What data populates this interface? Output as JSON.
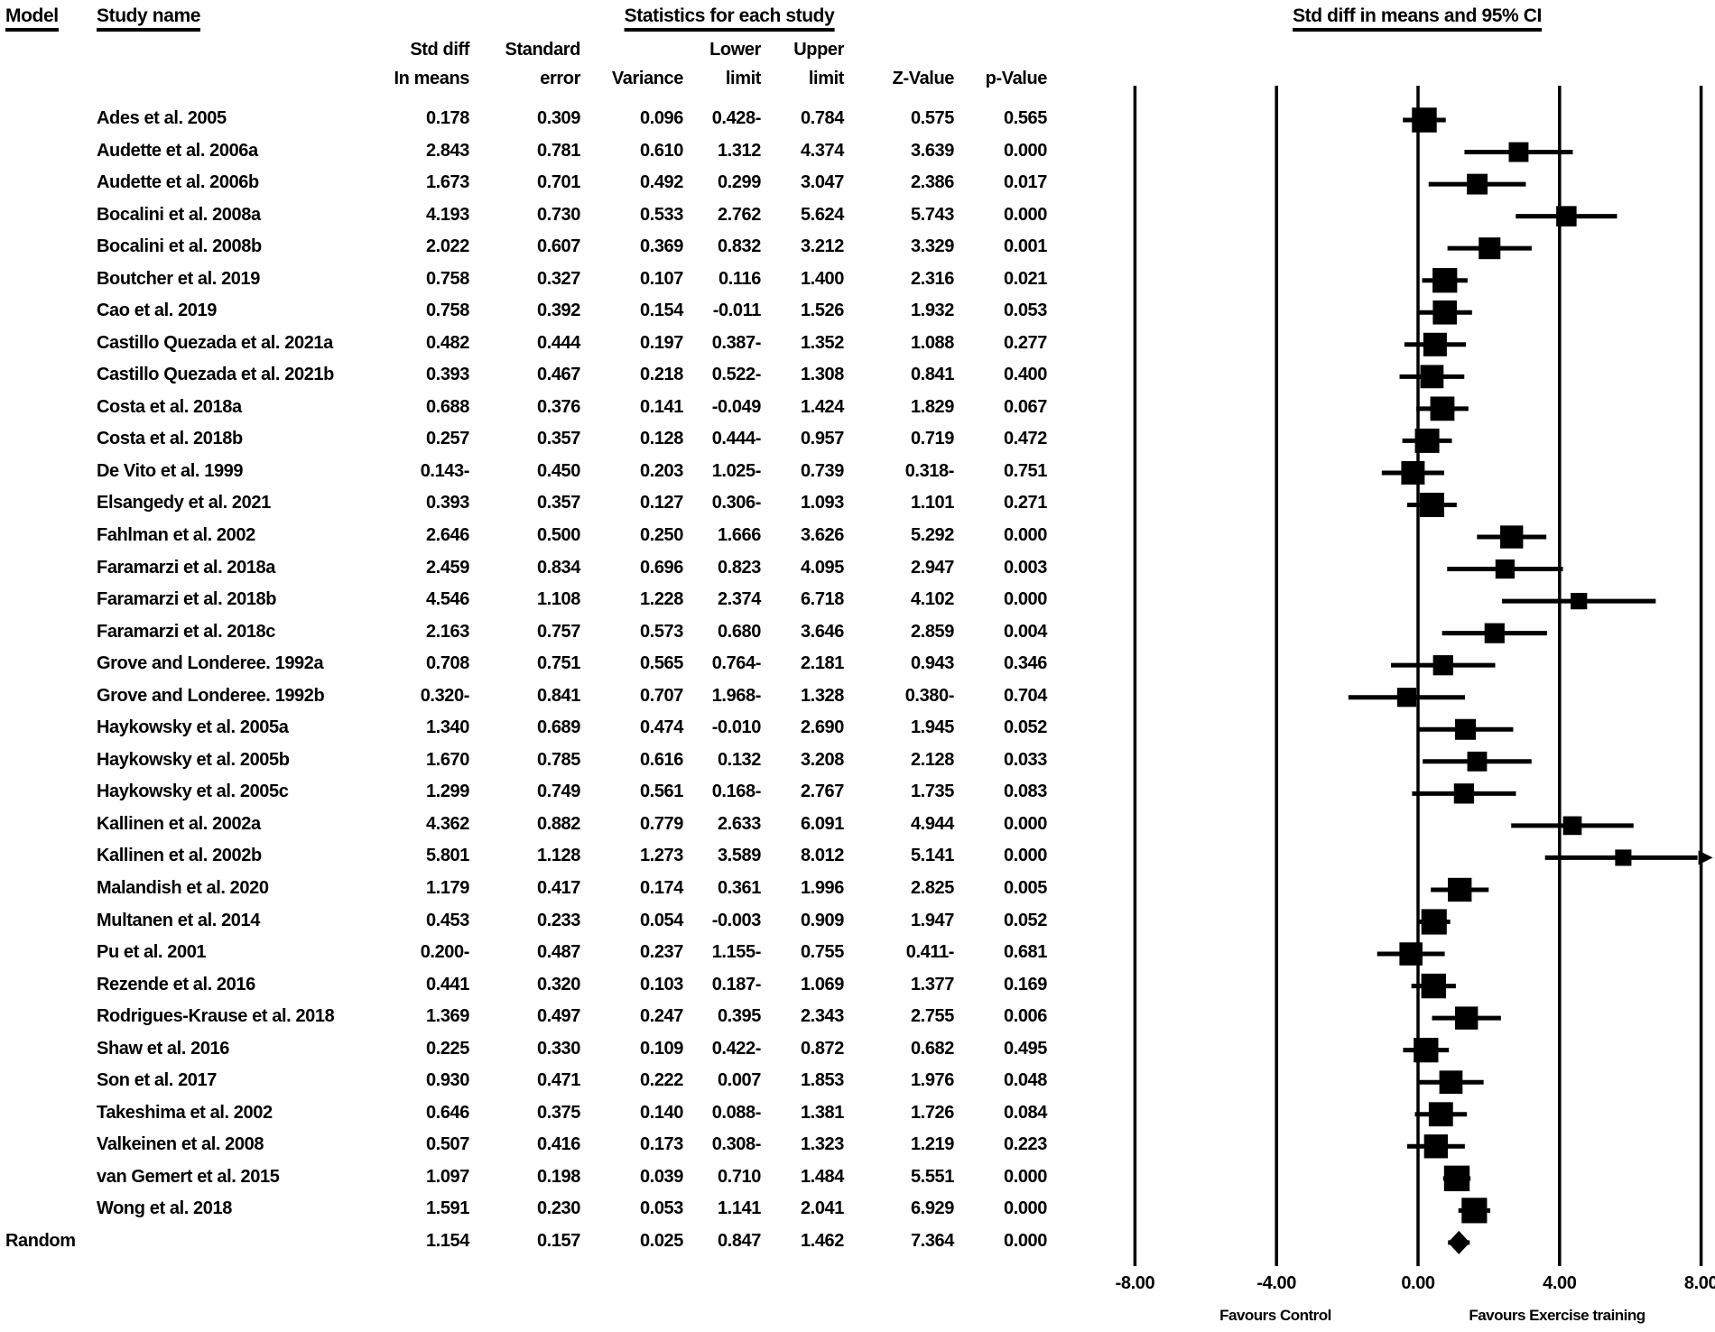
{
  "header": {
    "model": "Model",
    "study_name": "Study name",
    "stats_title": "Statistics for each study",
    "plot_title": "Std diff in means and 95% CI",
    "columns": [
      {
        "line1": "Std diff",
        "line2": "In means"
      },
      {
        "line1": "Standard",
        "line2": "error"
      },
      {
        "line1": "",
        "line2": "Variance"
      },
      {
        "line1": "Lower",
        "line2": "limit"
      },
      {
        "line1": "Upper",
        "line2": "limit"
      },
      {
        "line1": "",
        "line2": "Z-Value"
      },
      {
        "line1": "",
        "line2": "p-Value"
      }
    ]
  },
  "chart_data": {
    "type": "scatter",
    "subtype": "forest-plot",
    "title": "Std diff in means and 95% CI",
    "stats_title": "Statistics for each study",
    "x_axis": {
      "ticks": [
        -8,
        -4,
        0,
        4,
        8
      ],
      "tick_labels": [
        "-8.00",
        "-4.00",
        "0.00",
        "4.00",
        "8.00"
      ],
      "label_left": "Favours Control",
      "label_right": "Favours Exercise training",
      "xlim": [
        -8,
        8
      ]
    },
    "column_keys": [
      "std-diff-in-means",
      "standard-error",
      "variance",
      "lower-limit",
      "upper-limit",
      "z-value",
      "p-value"
    ],
    "studies": [
      {
        "model": "",
        "name": "Ades et al. 2005",
        "cells": [
          "0.178",
          "0.309",
          "0.096",
          "0.428-",
          "0.784",
          "0.575",
          "0.565"
        ],
        "est": 0.178,
        "lo": -0.428,
        "hi": 0.784,
        "summary": false
      },
      {
        "model": "",
        "name": "Audette et al. 2006a",
        "cells": [
          "2.843",
          "0.781",
          "0.610",
          "1.312",
          "4.374",
          "3.639",
          "0.000"
        ],
        "est": 2.843,
        "lo": 1.312,
        "hi": 4.374,
        "summary": false
      },
      {
        "model": "",
        "name": "Audette et al. 2006b",
        "cells": [
          "1.673",
          "0.701",
          "0.492",
          "0.299",
          "3.047",
          "2.386",
          "0.017"
        ],
        "est": 1.673,
        "lo": 0.299,
        "hi": 3.047,
        "summary": false
      },
      {
        "model": "",
        "name": "Bocalini et al. 2008a",
        "cells": [
          "4.193",
          "0.730",
          "0.533",
          "2.762",
          "5.624",
          "5.743",
          "0.000"
        ],
        "est": 4.193,
        "lo": 2.762,
        "hi": 5.624,
        "summary": false
      },
      {
        "model": "",
        "name": "Bocalini et al. 2008b",
        "cells": [
          "2.022",
          "0.607",
          "0.369",
          "0.832",
          "3.212",
          "3.329",
          "0.001"
        ],
        "est": 2.022,
        "lo": 0.832,
        "hi": 3.212,
        "summary": false
      },
      {
        "model": "",
        "name": "Boutcher et al. 2019",
        "cells": [
          "0.758",
          "0.327",
          "0.107",
          "0.116",
          "1.400",
          "2.316",
          "0.021"
        ],
        "est": 0.758,
        "lo": 0.116,
        "hi": 1.4,
        "summary": false
      },
      {
        "model": "",
        "name": "Cao et al. 2019",
        "cells": [
          "0.758",
          "0.392",
          "0.154",
          "-0.011",
          "1.526",
          "1.932",
          "0.053"
        ],
        "est": 0.758,
        "lo": -0.011,
        "hi": 1.526,
        "summary": false
      },
      {
        "model": "",
        "name": "Castillo Quezada et al. 2021a",
        "cells": [
          "0.482",
          "0.444",
          "0.197",
          "0.387-",
          "1.352",
          "1.088",
          "0.277"
        ],
        "est": 0.482,
        "lo": -0.387,
        "hi": 1.352,
        "summary": false
      },
      {
        "model": "",
        "name": "Castillo Quezada et al. 2021b",
        "cells": [
          "0.393",
          "0.467",
          "0.218",
          "0.522-",
          "1.308",
          "0.841",
          "0.400"
        ],
        "est": 0.393,
        "lo": -0.522,
        "hi": 1.308,
        "summary": false
      },
      {
        "model": "",
        "name": "Costa et al. 2018a",
        "cells": [
          "0.688",
          "0.376",
          "0.141",
          "-0.049",
          "1.424",
          "1.829",
          "0.067"
        ],
        "est": 0.688,
        "lo": -0.049,
        "hi": 1.424,
        "summary": false
      },
      {
        "model": "",
        "name": "Costa et al. 2018b",
        "cells": [
          "0.257",
          "0.357",
          "0.128",
          "0.444-",
          "0.957",
          "0.719",
          "0.472"
        ],
        "est": 0.257,
        "lo": -0.444,
        "hi": 0.957,
        "summary": false
      },
      {
        "model": "",
        "name": "De Vito et al. 1999",
        "cells": [
          "0.143-",
          "0.450",
          "0.203",
          "1.025-",
          "0.739",
          "0.318-",
          "0.751"
        ],
        "est": -0.143,
        "lo": -1.025,
        "hi": 0.739,
        "summary": false
      },
      {
        "model": "",
        "name": "Elsangedy et al. 2021",
        "cells": [
          "0.393",
          "0.357",
          "0.127",
          "0.306-",
          "1.093",
          "1.101",
          "0.271"
        ],
        "est": 0.393,
        "lo": -0.306,
        "hi": 1.093,
        "summary": false
      },
      {
        "model": "",
        "name": "Fahlman et al. 2002",
        "cells": [
          "2.646",
          "0.500",
          "0.250",
          "1.666",
          "3.626",
          "5.292",
          "0.000"
        ],
        "est": 2.646,
        "lo": 1.666,
        "hi": 3.626,
        "summary": false
      },
      {
        "model": "",
        "name": "Faramarzi et al. 2018a",
        "cells": [
          "2.459",
          "0.834",
          "0.696",
          "0.823",
          "4.095",
          "2.947",
          "0.003"
        ],
        "est": 2.459,
        "lo": 0.823,
        "hi": 4.095,
        "summary": false
      },
      {
        "model": "",
        "name": "Faramarzi et al. 2018b",
        "cells": [
          "4.546",
          "1.108",
          "1.228",
          "2.374",
          "6.718",
          "4.102",
          "0.000"
        ],
        "est": 4.546,
        "lo": 2.374,
        "hi": 6.718,
        "summary": false
      },
      {
        "model": "",
        "name": "Faramarzi et al. 2018c",
        "cells": [
          "2.163",
          "0.757",
          "0.573",
          "0.680",
          "3.646",
          "2.859",
          "0.004"
        ],
        "est": 2.163,
        "lo": 0.68,
        "hi": 3.646,
        "summary": false
      },
      {
        "model": "",
        "name": "Grove and Londeree. 1992a",
        "cells": [
          "0.708",
          "0.751",
          "0.565",
          "0.764-",
          "2.181",
          "0.943",
          "0.346"
        ],
        "est": 0.708,
        "lo": -0.764,
        "hi": 2.181,
        "summary": false
      },
      {
        "model": "",
        "name": "Grove and Londeree. 1992b",
        "cells": [
          "0.320-",
          "0.841",
          "0.707",
          "1.968-",
          "1.328",
          "0.380-",
          "0.704"
        ],
        "est": -0.32,
        "lo": -1.968,
        "hi": 1.328,
        "summary": false
      },
      {
        "model": "",
        "name": "Haykowsky et al. 2005a",
        "cells": [
          "1.340",
          "0.689",
          "0.474",
          "-0.010",
          "2.690",
          "1.945",
          "0.052"
        ],
        "est": 1.34,
        "lo": -0.01,
        "hi": 2.69,
        "summary": false
      },
      {
        "model": "",
        "name": "Haykowsky et al. 2005b",
        "cells": [
          "1.670",
          "0.785",
          "0.616",
          "0.132",
          "3.208",
          "2.128",
          "0.033"
        ],
        "est": 1.67,
        "lo": 0.132,
        "hi": 3.208,
        "summary": false
      },
      {
        "model": "",
        "name": "Haykowsky et al. 2005c",
        "cells": [
          "1.299",
          "0.749",
          "0.561",
          "0.168-",
          "2.767",
          "1.735",
          "0.083"
        ],
        "est": 1.299,
        "lo": -0.168,
        "hi": 2.767,
        "summary": false
      },
      {
        "model": "",
        "name": "Kallinen et al. 2002a",
        "cells": [
          "4.362",
          "0.882",
          "0.779",
          "2.633",
          "6.091",
          "4.944",
          "0.000"
        ],
        "est": 4.362,
        "lo": 2.633,
        "hi": 6.091,
        "summary": false
      },
      {
        "model": "",
        "name": "Kallinen et al. 2002b",
        "cells": [
          "5.801",
          "1.128",
          "1.273",
          "3.589",
          "8.012",
          "5.141",
          "0.000"
        ],
        "est": 5.801,
        "lo": 3.589,
        "hi": 8.012,
        "summary": false
      },
      {
        "model": "",
        "name": "Malandish et al. 2020",
        "cells": [
          "1.179",
          "0.417",
          "0.174",
          "0.361",
          "1.996",
          "2.825",
          "0.005"
        ],
        "est": 1.179,
        "lo": 0.361,
        "hi": 1.996,
        "summary": false
      },
      {
        "model": "",
        "name": "Multanen et al. 2014",
        "cells": [
          "0.453",
          "0.233",
          "0.054",
          "-0.003",
          "0.909",
          "1.947",
          "0.052"
        ],
        "est": 0.453,
        "lo": -0.003,
        "hi": 0.909,
        "summary": false
      },
      {
        "model": "",
        "name": "Pu et al. 2001",
        "cells": [
          "0.200-",
          "0.487",
          "0.237",
          "1.155-",
          "0.755",
          "0.411-",
          "0.681"
        ],
        "est": -0.2,
        "lo": -1.155,
        "hi": 0.755,
        "summary": false
      },
      {
        "model": "",
        "name": "Rezende et al. 2016",
        "cells": [
          "0.441",
          "0.320",
          "0.103",
          "0.187-",
          "1.069",
          "1.377",
          "0.169"
        ],
        "est": 0.441,
        "lo": -0.187,
        "hi": 1.069,
        "summary": false
      },
      {
        "model": "",
        "name": "Rodrigues-Krause et al. 2018",
        "cells": [
          "1.369",
          "0.497",
          "0.247",
          "0.395",
          "2.343",
          "2.755",
          "0.006"
        ],
        "est": 1.369,
        "lo": 0.395,
        "hi": 2.343,
        "summary": false
      },
      {
        "model": "",
        "name": "Shaw et al. 2016",
        "cells": [
          "0.225",
          "0.330",
          "0.109",
          "0.422-",
          "0.872",
          "0.682",
          "0.495"
        ],
        "est": 0.225,
        "lo": -0.422,
        "hi": 0.872,
        "summary": false
      },
      {
        "model": "",
        "name": "Son et al. 2017",
        "cells": [
          "0.930",
          "0.471",
          "0.222",
          "0.007",
          "1.853",
          "1.976",
          "0.048"
        ],
        "est": 0.93,
        "lo": 0.007,
        "hi": 1.853,
        "summary": false
      },
      {
        "model": "",
        "name": "Takeshima et al. 2002",
        "cells": [
          "0.646",
          "0.375",
          "0.140",
          "0.088-",
          "1.381",
          "1.726",
          "0.084"
        ],
        "est": 0.646,
        "lo": -0.088,
        "hi": 1.381,
        "summary": false
      },
      {
        "model": "",
        "name": "Valkeinen et al. 2008",
        "cells": [
          "0.507",
          "0.416",
          "0.173",
          "0.308-",
          "1.323",
          "1.219",
          "0.223"
        ],
        "est": 0.507,
        "lo": -0.308,
        "hi": 1.323,
        "summary": false
      },
      {
        "model": "",
        "name": "van Gemert et al. 2015",
        "cells": [
          "1.097",
          "0.198",
          "0.039",
          "0.710",
          "1.484",
          "5.551",
          "0.000"
        ],
        "est": 1.097,
        "lo": 0.71,
        "hi": 1.484,
        "summary": false
      },
      {
        "model": "",
        "name": "Wong et al. 2018",
        "cells": [
          "1.591",
          "0.230",
          "0.053",
          "1.141",
          "2.041",
          "6.929",
          "0.000"
        ],
        "est": 1.591,
        "lo": 1.141,
        "hi": 2.041,
        "summary": false
      },
      {
        "model": "Random",
        "name": "",
        "cells": [
          "1.154",
          "0.157",
          "0.025",
          "0.847",
          "1.462",
          "7.364",
          "0.000"
        ],
        "est": 1.154,
        "lo": 0.847,
        "hi": 1.462,
        "summary": true
      }
    ]
  }
}
